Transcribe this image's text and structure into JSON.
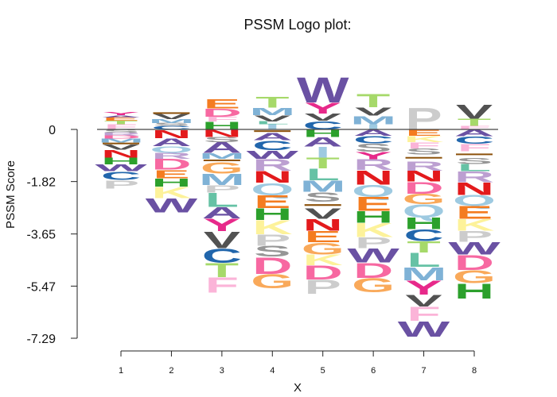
{
  "chart_data": {
    "type": "logo",
    "title": "PSSM Logo plot:",
    "xlabel": "X",
    "ylabel": "PSSM  Score",
    "x_ticks": [
      "1",
      "2",
      "3",
      "4",
      "5",
      "6",
      "7",
      "8"
    ],
    "y_ticks": [
      "0",
      "-1.82",
      "-3.65",
      "-5.47",
      "-7.29"
    ],
    "y_tick_values": [
      0,
      -1.82,
      -3.65,
      -5.47,
      -7.29
    ],
    "ylim": [
      -7.29,
      2.0
    ],
    "baseline": 0,
    "colors": {
      "A": "#6a51a3",
      "C": "#2166ac",
      "D": "#f768a1",
      "E": "#f47c20",
      "F": "#fbb4d8",
      "G": "#f9a95a",
      "H": "#2ca02c",
      "I": "#9ecae1",
      "K": "#fdf29a",
      "L": "#66c2a5",
      "M": "#7fb2d6",
      "N": "#e31a1c",
      "P": "#cccccc",
      "Q": "#9ecae1",
      "R": "#bc9fd1",
      "S": "#969696",
      "T": "#a6d96a",
      "V": "#525252",
      "W": "#6a51a3",
      "Y": "#e7298a",
      "bar": "#8c510a"
    },
    "positions": [
      {
        "x": 1,
        "positive": [
          [
            "F",
            0.18
          ],
          [
            "T",
            0.12
          ],
          [
            "E",
            0.12
          ],
          [
            "A",
            0.08
          ],
          [
            "Y",
            0.1
          ]
        ],
        "negative": [
          [
            "S",
            0.12
          ],
          [
            "R",
            0.1
          ],
          [
            "D",
            0.1
          ],
          [
            "M",
            0.14
          ],
          [
            "bar",
            0.06
          ],
          [
            "V",
            0.18
          ],
          [
            "N",
            0.28
          ],
          [
            "H",
            0.24
          ],
          [
            "W",
            0.24
          ],
          [
            "C",
            0.3
          ],
          [
            "P",
            0.3
          ]
        ]
      },
      {
        "x": 2,
        "positive": [
          [
            "C",
            0.12
          ],
          [
            "S",
            0.1
          ],
          [
            "M",
            0.14
          ],
          [
            "V",
            0.18
          ],
          [
            "bar",
            0.06
          ]
        ],
        "negative": [
          [
            "N",
            0.3
          ],
          [
            "A",
            0.28
          ],
          [
            "Q",
            0.22
          ],
          [
            "R",
            0.22
          ],
          [
            "D",
            0.38
          ],
          [
            "E",
            0.3
          ],
          [
            "H",
            0.3
          ],
          [
            "K",
            0.4
          ],
          [
            "W",
            0.5
          ]
        ]
      },
      {
        "x": 3,
        "positive": [
          [
            "H",
            0.28
          ],
          [
            "F",
            0.16
          ],
          [
            "D",
            0.3
          ],
          [
            "E",
            0.34
          ]
        ],
        "negative": [
          [
            "N",
            0.26
          ],
          [
            "S",
            0.18
          ],
          [
            "A",
            0.38
          ],
          [
            "M",
            0.2
          ],
          [
            "bar",
            0.12
          ],
          [
            "G",
            0.4
          ],
          [
            "M",
            0.4
          ],
          [
            "P",
            0.26
          ],
          [
            "L",
            0.5
          ],
          [
            "A",
            0.4
          ],
          [
            "Y",
            0.45
          ],
          [
            "V",
            0.6
          ],
          [
            "C",
            0.5
          ],
          [
            "T",
            0.5
          ],
          [
            "F",
            0.55
          ]
        ]
      },
      {
        "x": 4,
        "positive": [
          [
            "I",
            0.18
          ],
          [
            "L",
            0.1
          ],
          [
            "V",
            0.22
          ],
          [
            "M",
            0.26
          ],
          [
            "T",
            0.38
          ]
        ],
        "negative": [
          [
            "bar",
            0.12
          ],
          [
            "A",
            0.26
          ],
          [
            "C",
            0.34
          ],
          [
            "W",
            0.3
          ],
          [
            "R",
            0.42
          ],
          [
            "N",
            0.42
          ],
          [
            "Q",
            0.42
          ],
          [
            "E",
            0.46
          ],
          [
            "H",
            0.42
          ],
          [
            "K",
            0.5
          ],
          [
            "P",
            0.4
          ],
          [
            "S",
            0.38
          ],
          [
            "D",
            0.6
          ],
          [
            "G",
            0.5
          ]
        ]
      },
      {
        "x": 5,
        "positive": [
          [
            "C",
            0.3
          ],
          [
            "V",
            0.26
          ],
          [
            "Y",
            0.38
          ],
          [
            "W",
            0.9
          ]
        ],
        "negative": [
          [
            "H",
            0.26
          ],
          [
            "A",
            0.34
          ],
          [
            "I",
            0.38
          ],
          [
            "T",
            0.38
          ],
          [
            "L",
            0.42
          ],
          [
            "M",
            0.4
          ],
          [
            "S",
            0.34
          ],
          [
            "bar",
            0.24
          ],
          [
            "V",
            0.36
          ],
          [
            "N",
            0.42
          ],
          [
            "E",
            0.4
          ],
          [
            "G",
            0.42
          ],
          [
            "K",
            0.38
          ],
          [
            "D",
            0.5
          ],
          [
            "P",
            0.5
          ]
        ]
      },
      {
        "x": 6,
        "positive": [
          [
            "I",
            0.18
          ],
          [
            "M",
            0.3
          ],
          [
            "V",
            0.3
          ],
          [
            "T",
            0.48
          ]
        ],
        "negative": [
          [
            "A",
            0.22
          ],
          [
            "C",
            0.26
          ],
          [
            "S",
            0.3
          ],
          [
            "Y",
            0.26
          ],
          [
            "R",
            0.38
          ],
          [
            "N",
            0.5
          ],
          [
            "Q",
            0.42
          ],
          [
            "E",
            0.5
          ],
          [
            "H",
            0.42
          ],
          [
            "K",
            0.5
          ],
          [
            "P",
            0.38
          ],
          [
            "W",
            0.5
          ],
          [
            "D",
            0.54
          ],
          [
            "G",
            0.5
          ]
        ]
      },
      {
        "x": 7,
        "positive": [
          [
            "P",
            0.78
          ]
        ],
        "negative": [
          [
            "E",
            0.22
          ],
          [
            "K",
            0.22
          ],
          [
            "F",
            0.22
          ],
          [
            "S",
            0.22
          ],
          [
            "bar",
            0.22
          ],
          [
            "R",
            0.34
          ],
          [
            "N",
            0.38
          ],
          [
            "D",
            0.42
          ],
          [
            "G",
            0.36
          ],
          [
            "Q",
            0.46
          ],
          [
            "H",
            0.42
          ],
          [
            "C",
            0.42
          ],
          [
            "T",
            0.4
          ],
          [
            "L",
            0.5
          ],
          [
            "M",
            0.46
          ],
          [
            "Y",
            0.5
          ],
          [
            "V",
            0.42
          ],
          [
            "F",
            0.5
          ],
          [
            "W",
            0.55
          ]
        ]
      },
      {
        "x": 8,
        "positive": [
          [
            "F",
            0.12
          ],
          [
            "T",
            0.26
          ],
          [
            "V",
            0.5
          ]
        ],
        "negative": [
          [
            "A",
            0.24
          ],
          [
            "C",
            0.26
          ],
          [
            "F",
            0.26
          ],
          [
            "bar",
            0.22
          ],
          [
            "S",
            0.22
          ],
          [
            "L",
            0.26
          ],
          [
            "R",
            0.38
          ],
          [
            "N",
            0.44
          ],
          [
            "Q",
            0.38
          ],
          [
            "E",
            0.46
          ],
          [
            "K",
            0.42
          ],
          [
            "P",
            0.38
          ],
          [
            "W",
            0.44
          ],
          [
            "D",
            0.54
          ],
          [
            "G",
            0.46
          ],
          [
            "H",
            0.54
          ]
        ]
      }
    ]
  }
}
